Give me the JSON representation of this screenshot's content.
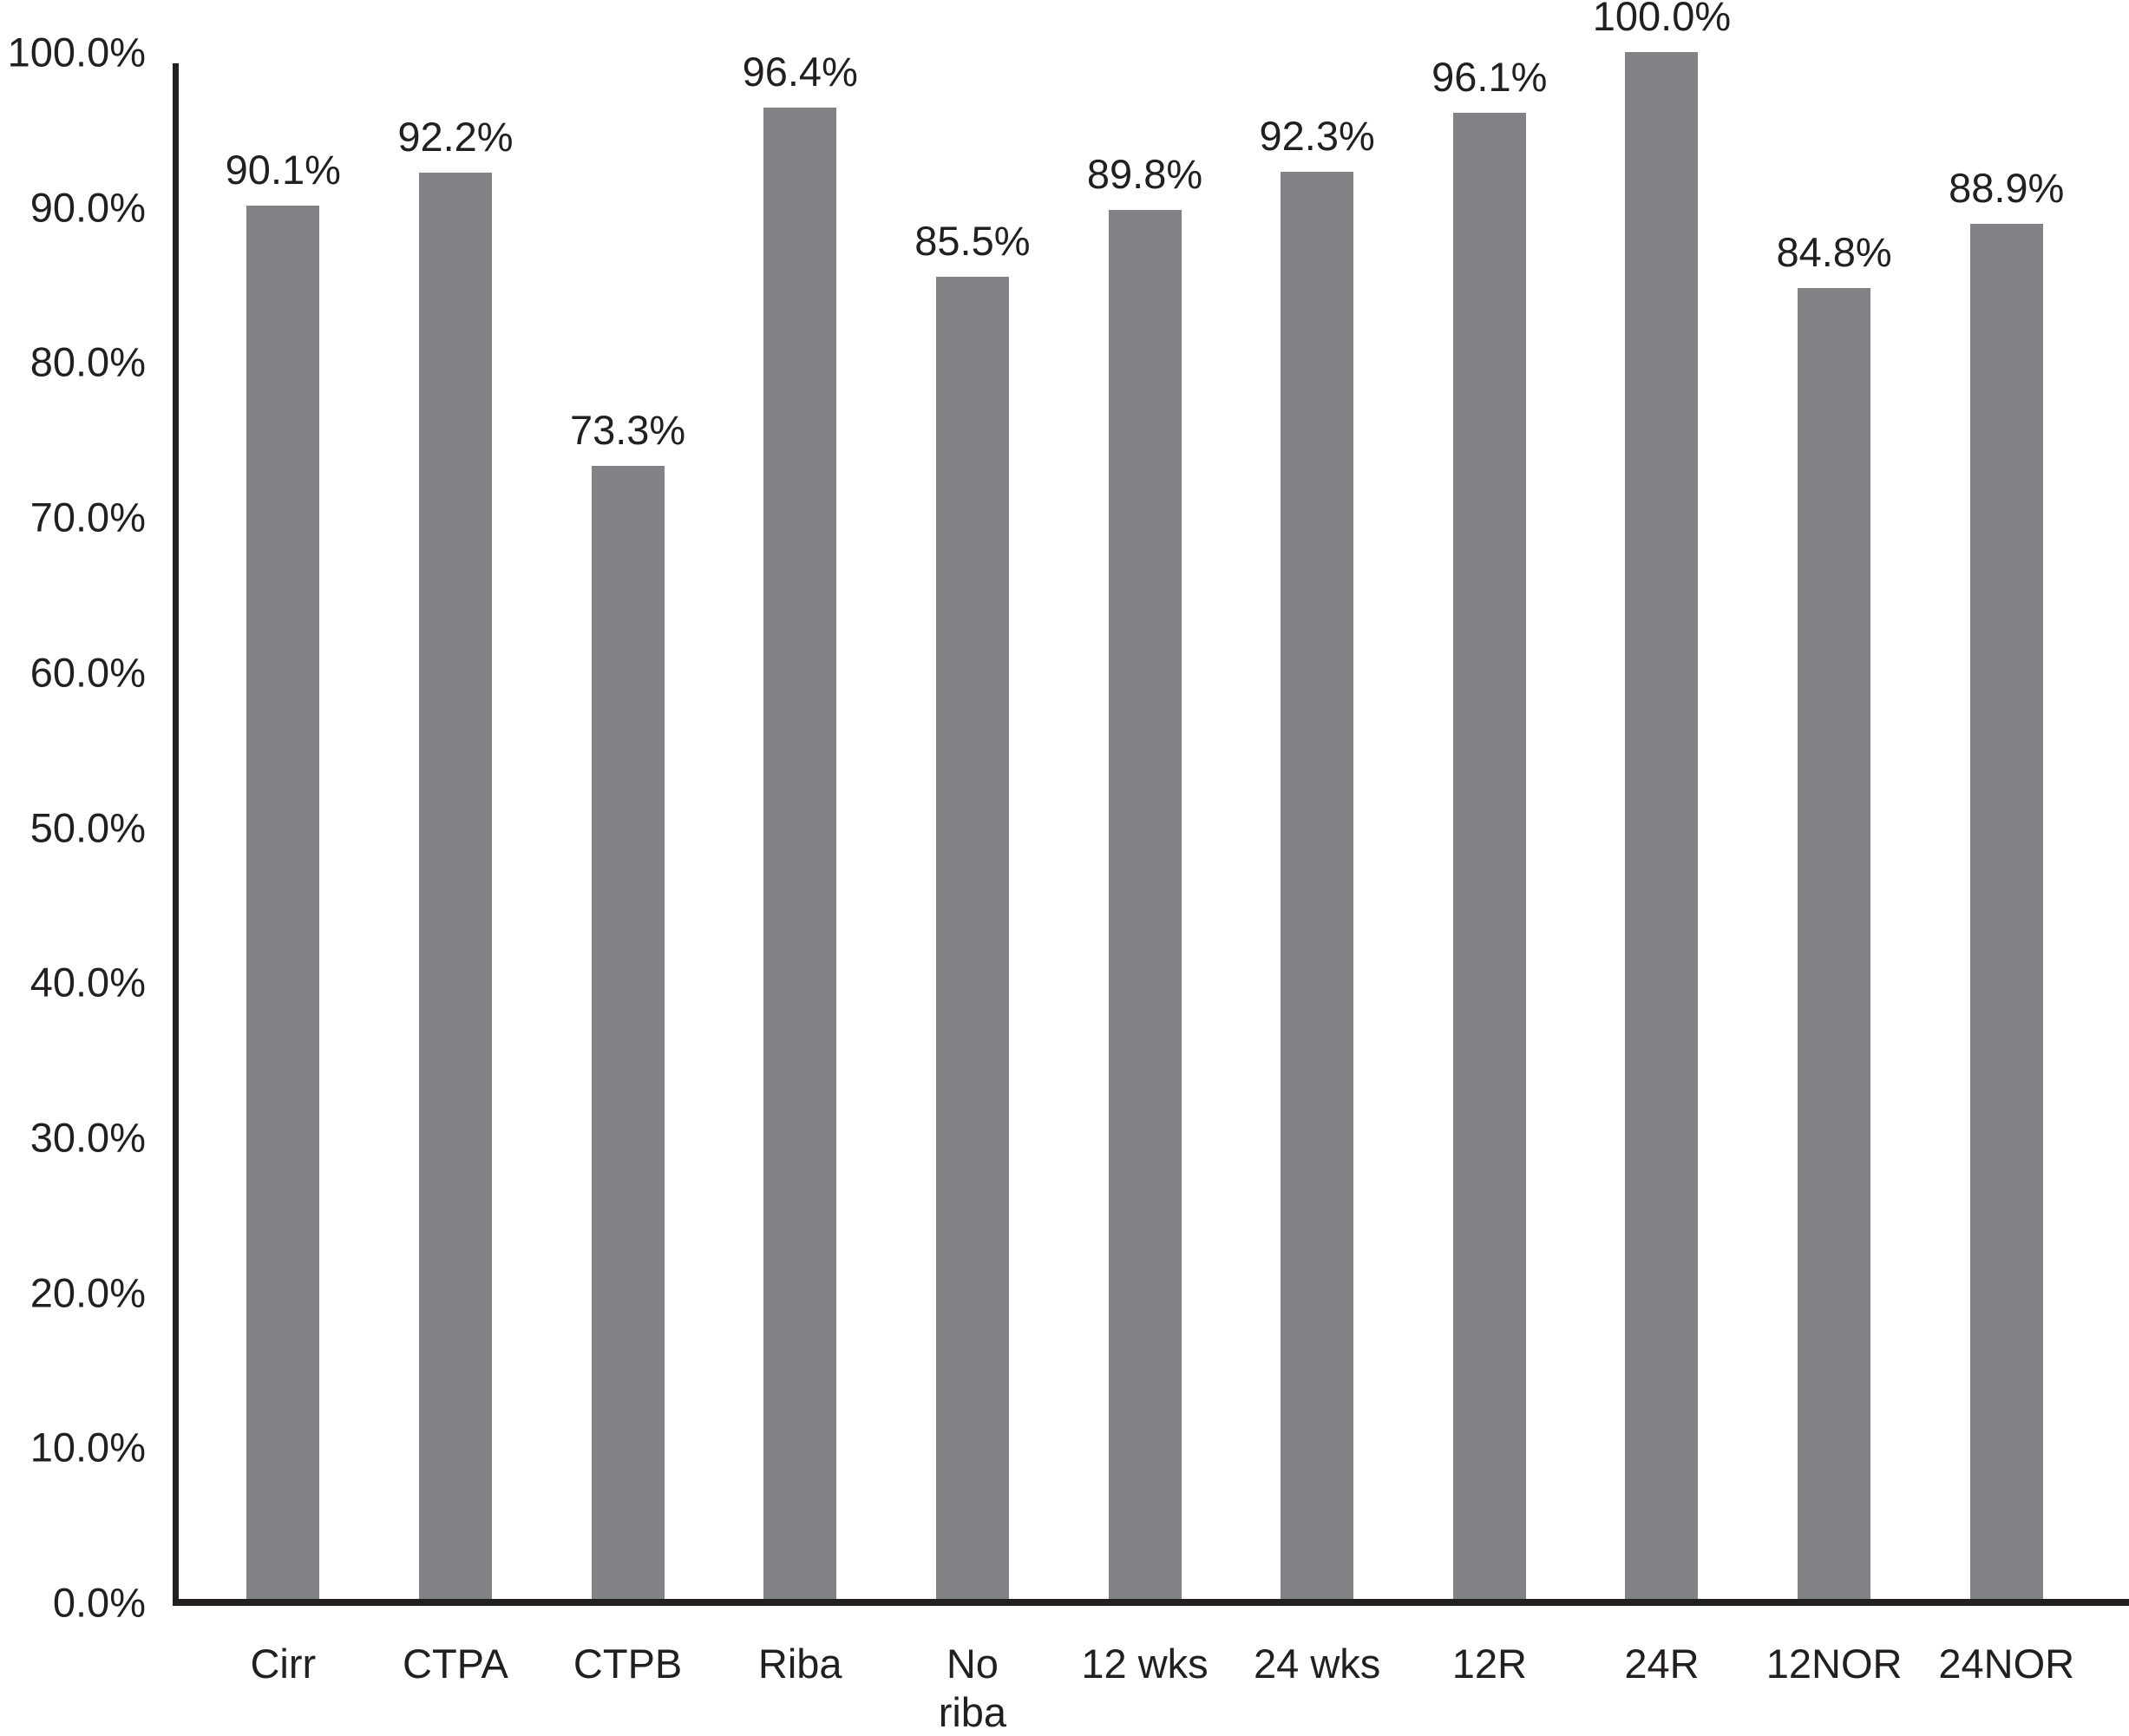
{
  "chart_data": {
    "type": "bar",
    "categories": [
      "Cirr",
      "CTPA",
      "CTPB",
      "Riba",
      "No\nriba",
      "12 wks",
      "24 wks",
      "12R",
      "24R",
      "12NOR",
      "24NOR"
    ],
    "values": [
      90.1,
      92.2,
      73.3,
      96.4,
      85.5,
      89.8,
      92.3,
      96.1,
      100.0,
      84.8,
      88.9
    ],
    "value_labels": [
      "90.1%",
      "92.2%",
      "73.3%",
      "96.4%",
      "85.5%",
      "89.8%",
      "92.3%",
      "96.1%",
      "100.0%",
      "84.8%",
      "88.9%"
    ],
    "title": "",
    "xlabel": "",
    "ylabel": "",
    "ylim": [
      0,
      100
    ],
    "y_ticks": [
      "100.0%",
      "90.0%",
      "80.0%",
      "70.0%",
      "60.0%",
      "50.0%",
      "40.0%",
      "30.0%",
      "20.0%",
      "10.0%",
      "0.0%"
    ],
    "y_tick_values": [
      100,
      90,
      80,
      70,
      60,
      50,
      40,
      30,
      20,
      10,
      0
    ],
    "grid": "off",
    "legend": "none",
    "bar_color": "#808285",
    "axis_color": "#231f20",
    "text_color": "#231f20",
    "background_color": "#ffffff"
  }
}
